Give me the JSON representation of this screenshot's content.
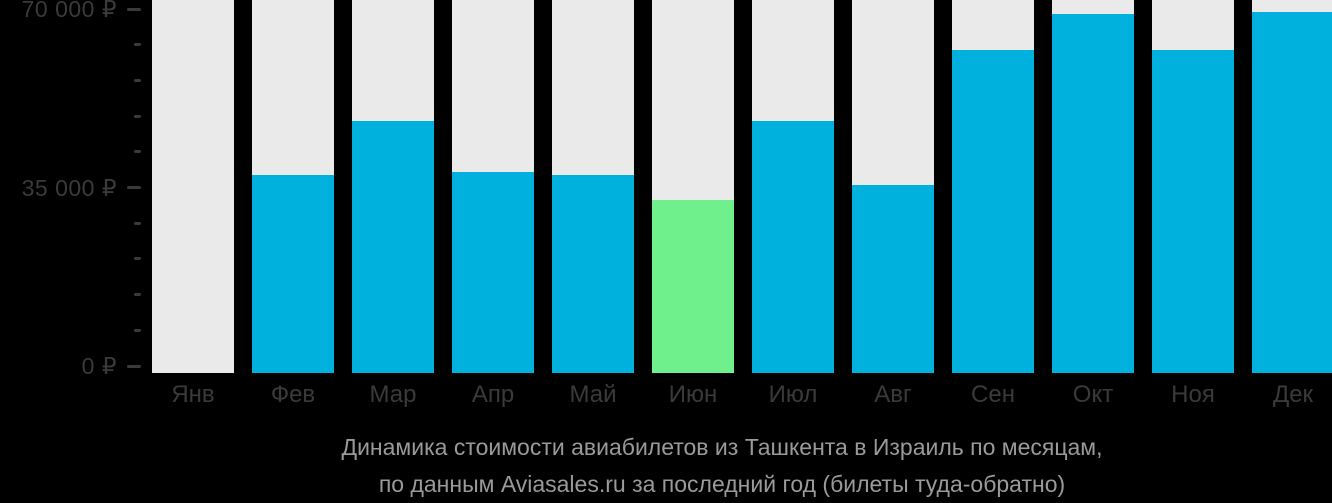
{
  "chart_data": {
    "type": "bar",
    "title": "Динамика стоимости авиабилетов из Ташкента в Израиль по месяцам, по данным Aviasales.ru за последний год (билеты туда-обратно)",
    "categories": [
      "Янв",
      "Фев",
      "Мар",
      "Апр",
      "Май",
      "Июн",
      "Июл",
      "Авг",
      "Сен",
      "Окт",
      "Ноя",
      "Дек"
    ],
    "values": [
      null,
      37500,
      48000,
      38000,
      37500,
      32500,
      48000,
      35500,
      62000,
      69000,
      62000,
      69500
    ],
    "highlight_index": 5,
    "xlabel": "",
    "ylabel": "",
    "ylim": [
      0,
      70000
    ],
    "yticks": [
      {
        "label": "70 000 ₽",
        "value": 70000
      },
      {
        "label": "35 000 ₽",
        "value": 35000
      },
      {
        "label": "0 ₽",
        "value": 0
      }
    ],
    "minor_tick_step": 7000,
    "grid": false,
    "legend": false,
    "colors": {
      "bar": "#00b1de",
      "bar_highlight": "#6ff08c",
      "column_background": "#eaeaea",
      "axis_text": "#3a3a3a",
      "caption_text": "#9a9a9a",
      "background": "#000000"
    }
  },
  "caption": {
    "line1": "Динамика стоимости авиабилетов из Ташкента в Израиль по месяцам,",
    "line2": "по данным Aviasales.ru за последний год (билеты туда-обратно)"
  }
}
